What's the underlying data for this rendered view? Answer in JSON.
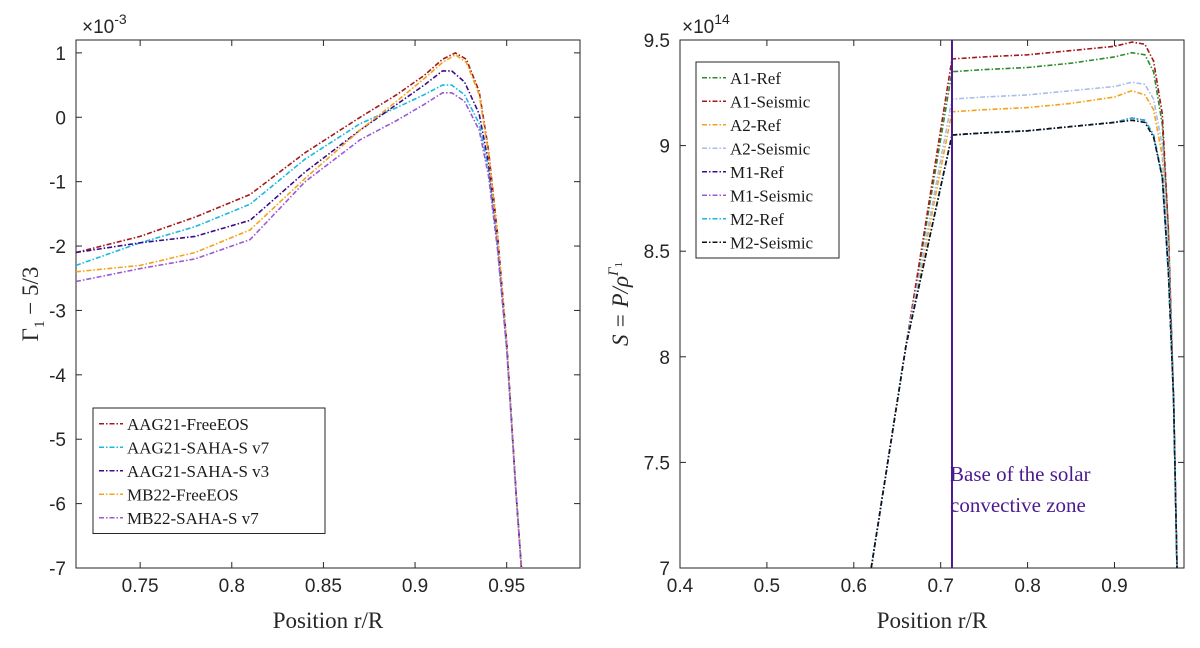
{
  "chart_data": [
    {
      "type": "line",
      "xlabel": "Position r/R",
      "ylabel": "Γ₁ − 5/3",
      "ylabel_parts": {
        "symbol": "Γ",
        "sub": "1",
        "rest": " − 5/3"
      },
      "y_multiplier": {
        "base": "×10",
        "exp": "-3"
      },
      "xlim": [
        0.715,
        0.99
      ],
      "ylim": [
        -7,
        1.2
      ],
      "xticks": [
        0.75,
        0.8,
        0.85,
        0.9,
        0.95
      ],
      "xtick_labels": [
        "0.75",
        "0.8",
        "0.85",
        "0.9",
        "0.95"
      ],
      "yticks": [
        1,
        0,
        -1,
        -2,
        -3,
        -4,
        -5,
        -6,
        -7
      ],
      "ytick_labels": [
        "1",
        "0",
        "-1",
        "-2",
        "-3",
        "-4",
        "-5",
        "-6",
        "-7"
      ],
      "grid": false,
      "legend_position": "bottom-left",
      "series": [
        {
          "name": "AAG21-FreeEOS",
          "color": "#a3191b",
          "x": [
            0.715,
            0.75,
            0.78,
            0.81,
            0.84,
            0.87,
            0.89,
            0.905,
            0.915,
            0.922,
            0.928,
            0.935,
            0.94,
            0.945,
            0.95,
            0.955,
            0.958
          ],
          "y": [
            -2.1,
            -1.85,
            -1.55,
            -1.2,
            -0.55,
            0.0,
            0.35,
            0.65,
            0.9,
            1.0,
            0.9,
            0.4,
            -0.5,
            -1.8,
            -3.5,
            -5.8,
            -7.0
          ]
        },
        {
          "name": "AAG21-SAHA-S v7",
          "color": "#1ab8e0",
          "x": [
            0.715,
            0.75,
            0.78,
            0.81,
            0.84,
            0.87,
            0.89,
            0.905,
            0.915,
            0.92,
            0.927,
            0.935,
            0.94,
            0.945,
            0.95,
            0.955,
            0.958
          ],
          "y": [
            -2.3,
            -1.95,
            -1.7,
            -1.35,
            -0.65,
            -0.1,
            0.15,
            0.35,
            0.5,
            0.5,
            0.35,
            -0.1,
            -0.8,
            -2.0,
            -3.6,
            -5.8,
            -7.0
          ]
        },
        {
          "name": "AAG21-SAHA-S v3",
          "color": "#3d0b8a",
          "x": [
            0.715,
            0.75,
            0.78,
            0.81,
            0.84,
            0.87,
            0.89,
            0.905,
            0.915,
            0.92,
            0.927,
            0.935,
            0.94,
            0.945,
            0.95,
            0.955,
            0.958
          ],
          "y": [
            -2.1,
            -1.95,
            -1.85,
            -1.6,
            -0.85,
            -0.2,
            0.2,
            0.5,
            0.72,
            0.72,
            0.55,
            0.05,
            -0.7,
            -1.9,
            -3.5,
            -5.8,
            -7.0
          ]
        },
        {
          "name": "MB22-FreeEOS",
          "color": "#f5a21b",
          "x": [
            0.715,
            0.75,
            0.78,
            0.81,
            0.84,
            0.87,
            0.89,
            0.905,
            0.915,
            0.922,
            0.928,
            0.935,
            0.94,
            0.945,
            0.95,
            0.955,
            0.958
          ],
          "y": [
            -2.4,
            -2.3,
            -2.1,
            -1.75,
            -0.95,
            -0.2,
            0.25,
            0.6,
            0.85,
            0.97,
            0.85,
            0.35,
            -0.55,
            -1.85,
            -3.5,
            -5.8,
            -7.0
          ]
        },
        {
          "name": "MB22-SAHA-S v7",
          "color": "#9b59d6",
          "x": [
            0.715,
            0.75,
            0.78,
            0.81,
            0.84,
            0.87,
            0.89,
            0.905,
            0.915,
            0.92,
            0.927,
            0.935,
            0.94,
            0.945,
            0.95,
            0.955,
            0.958
          ],
          "y": [
            -2.55,
            -2.35,
            -2.2,
            -1.9,
            -1.0,
            -0.35,
            -0.05,
            0.2,
            0.38,
            0.38,
            0.25,
            -0.2,
            -0.9,
            -2.05,
            -3.6,
            -5.8,
            -7.0
          ]
        }
      ]
    },
    {
      "type": "line",
      "xlabel": "Position r/R",
      "ylabel": "S = P/ρ^Γ₁",
      "ylabel_parts": {
        "lhs": "S = P/ρ",
        "sup": "Γ",
        "supsub": "1"
      },
      "y_multiplier": {
        "base": "×10",
        "exp": "14"
      },
      "xlim": [
        0.4,
        0.98
      ],
      "ylim": [
        7.0,
        9.5
      ],
      "xticks": [
        0.4,
        0.5,
        0.6,
        0.7,
        0.8,
        0.9
      ],
      "xtick_labels": [
        "0.4",
        "0.5",
        "0.6",
        "0.7",
        "0.8",
        "0.9"
      ],
      "yticks": [
        9.5,
        9,
        8.5,
        8,
        7.5,
        7
      ],
      "ytick_labels": [
        "9.5",
        "9",
        "8.5",
        "8",
        "7.5",
        "7"
      ],
      "grid": false,
      "legend_position": "top-left",
      "vline": {
        "x": 0.713,
        "color": "#4b1a8e"
      },
      "annotation": {
        "lines": [
          "Base of the solar",
          "convective zone"
        ],
        "x": 0.713,
        "y": 7.3
      },
      "series": [
        {
          "name": "A1-Ref",
          "color": "#2e8b2e",
          "x": [
            0.62,
            0.66,
            0.713,
            0.75,
            0.8,
            0.85,
            0.9,
            0.92,
            0.935,
            0.945,
            0.955,
            0.962,
            0.968,
            0.972
          ],
          "y": [
            7.0,
            8.05,
            9.35,
            9.36,
            9.37,
            9.39,
            9.42,
            9.44,
            9.43,
            9.35,
            9.1,
            8.6,
            7.8,
            7.0
          ]
        },
        {
          "name": "A1-Seismic",
          "color": "#a3191b",
          "x": [
            0.62,
            0.66,
            0.713,
            0.75,
            0.8,
            0.85,
            0.9,
            0.92,
            0.935,
            0.945,
            0.955,
            0.962,
            0.968,
            0.972
          ],
          "y": [
            7.0,
            8.05,
            9.41,
            9.42,
            9.43,
            9.45,
            9.47,
            9.49,
            9.48,
            9.4,
            9.15,
            8.6,
            7.8,
            7.0
          ]
        },
        {
          "name": "A2-Ref",
          "color": "#f5a21b",
          "x": [
            0.62,
            0.66,
            0.713,
            0.75,
            0.8,
            0.85,
            0.9,
            0.92,
            0.935,
            0.945,
            0.955,
            0.962,
            0.968,
            0.972
          ],
          "y": [
            7.0,
            8.05,
            9.16,
            9.17,
            9.18,
            9.2,
            9.23,
            9.26,
            9.24,
            9.17,
            8.95,
            8.5,
            7.8,
            7.0
          ]
        },
        {
          "name": "A2-Seismic",
          "color": "#a9bde6",
          "x": [
            0.62,
            0.66,
            0.713,
            0.75,
            0.8,
            0.85,
            0.9,
            0.92,
            0.935,
            0.945,
            0.955,
            0.962,
            0.968,
            0.972
          ],
          "y": [
            7.0,
            8.05,
            9.22,
            9.23,
            9.24,
            9.26,
            9.28,
            9.3,
            9.29,
            9.22,
            9.0,
            8.5,
            7.8,
            7.0
          ]
        },
        {
          "name": "M1-Ref",
          "color": "#3d0b8a",
          "x": [
            0.62,
            0.66,
            0.713,
            0.75,
            0.8,
            0.85,
            0.9,
            0.92,
            0.935,
            0.945,
            0.955,
            0.962,
            0.968,
            0.972
          ],
          "y": [
            7.0,
            8.05,
            9.05,
            9.06,
            9.07,
            9.09,
            9.11,
            9.13,
            9.12,
            9.05,
            8.85,
            8.4,
            7.8,
            7.0
          ]
        },
        {
          "name": "M1-Seismic",
          "color": "#9b59d6",
          "x": [
            0.62,
            0.66,
            0.713,
            0.75,
            0.8,
            0.85,
            0.9,
            0.92,
            0.935,
            0.945,
            0.955,
            0.962,
            0.968,
            0.972
          ],
          "y": [
            7.0,
            8.05,
            9.05,
            9.06,
            9.07,
            9.09,
            9.11,
            9.13,
            9.12,
            9.05,
            8.85,
            8.4,
            7.8,
            7.0
          ]
        },
        {
          "name": "M2-Ref",
          "color": "#1ab8e0",
          "x": [
            0.62,
            0.66,
            0.713,
            0.75,
            0.8,
            0.85,
            0.9,
            0.92,
            0.935,
            0.945,
            0.955,
            0.962,
            0.968,
            0.972
          ],
          "y": [
            7.0,
            8.05,
            9.05,
            9.06,
            9.07,
            9.09,
            9.11,
            9.13,
            9.12,
            9.05,
            8.85,
            8.4,
            7.8,
            7.0
          ]
        },
        {
          "name": "M2-Seismic",
          "color": "#111111",
          "x": [
            0.62,
            0.66,
            0.713,
            0.75,
            0.8,
            0.85,
            0.9,
            0.92,
            0.935,
            0.945,
            0.955,
            0.962,
            0.968,
            0.972
          ],
          "y": [
            7.0,
            8.05,
            9.05,
            9.06,
            9.07,
            9.09,
            9.11,
            9.12,
            9.11,
            9.04,
            8.85,
            8.4,
            7.8,
            7.0
          ]
        }
      ]
    }
  ]
}
